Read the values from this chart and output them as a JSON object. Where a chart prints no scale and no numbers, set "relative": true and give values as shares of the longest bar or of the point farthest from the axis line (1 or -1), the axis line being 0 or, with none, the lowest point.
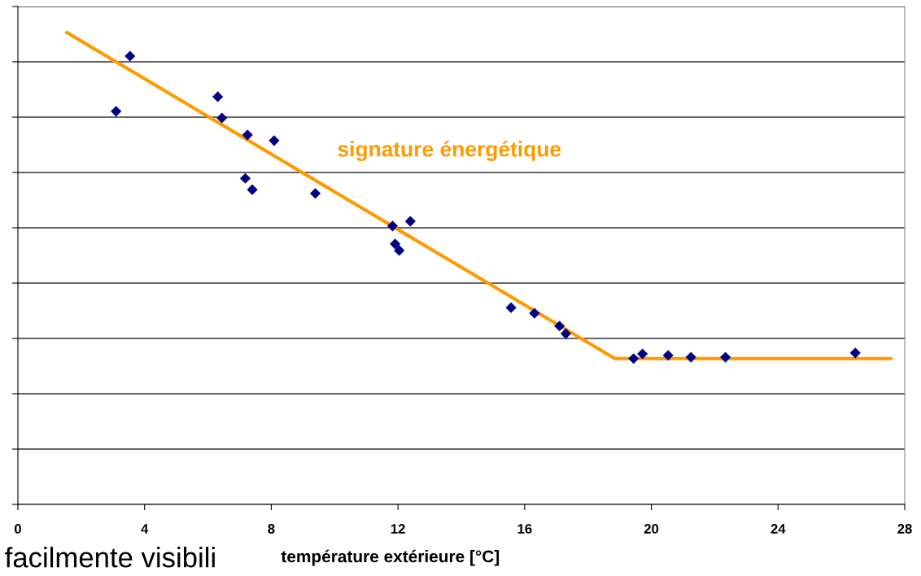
{
  "chart_data": {
    "type": "scatter",
    "relative": true,
    "xlabel": "température extérieure [°C]",
    "xlim": [
      0,
      28
    ],
    "xticks": [
      0,
      4,
      8,
      12,
      16,
      20,
      24,
      28
    ],
    "grid": "y",
    "tick_labels": "x",
    "marker": "diamond",
    "annotations": [
      "facilmente visibili"
    ],
    "series": [
      {
        "color": "#000080",
        "x": [
          3.1,
          3.54,
          6.31,
          6.44,
          7.25,
          8.09,
          7.18,
          7.4,
          9.39,
          11.83,
          11.91,
          12.04,
          12.39,
          15.57,
          16.31,
          17.1,
          17.3,
          19.44,
          19.72,
          20.53,
          21.25,
          22.34,
          26.44
        ],
        "values": [
          0.833,
          0.95,
          0.864,
          0.819,
          0.783,
          0.771,
          0.691,
          0.667,
          0.659,
          0.59,
          0.552,
          0.538,
          0.6,
          0.417,
          0.405,
          0.378,
          0.362,
          0.309,
          0.319,
          0.316,
          0.312,
          0.312,
          0.321
        ]
      },
      {
        "type": "line",
        "name": "signature énergétique",
        "color": "#ff9900",
        "marker": "none",
        "x": [
          1.55,
          18.85,
          27.56
        ],
        "values": [
          1.0,
          0.309,
          0.309
        ]
      }
    ]
  }
}
